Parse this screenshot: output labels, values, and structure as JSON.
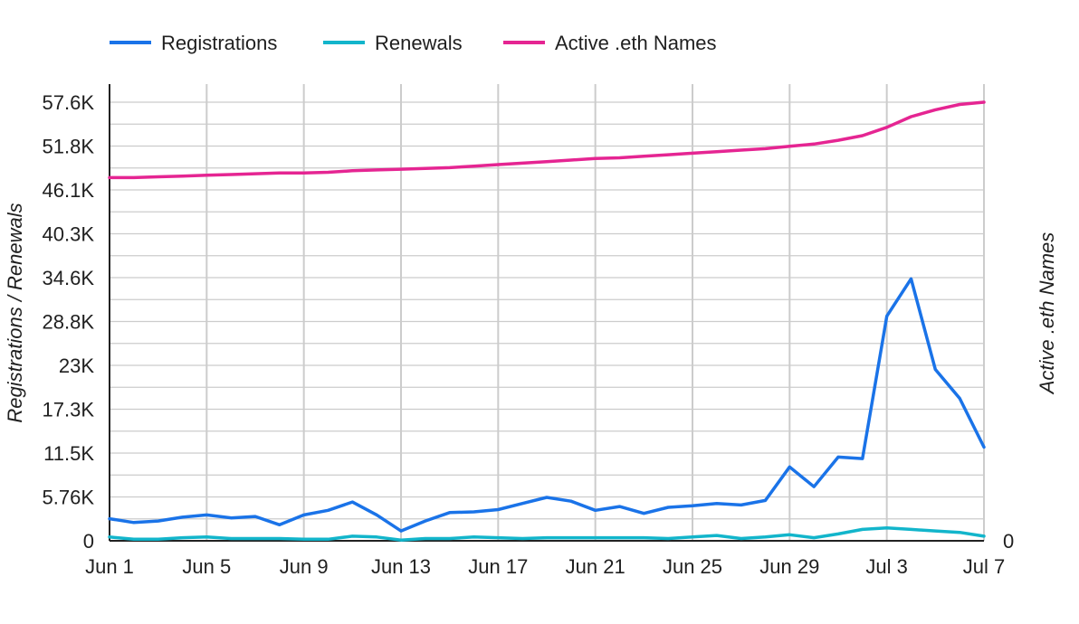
{
  "chart_data": {
    "type": "line",
    "title": "",
    "xlabel": "",
    "ylabel": "Registrations / Renewals",
    "y2label": "Active .eth Names",
    "x_tick_labels": [
      "Jun 1",
      "Jun 5",
      "Jun 9",
      "Jun 13",
      "Jun 17",
      "Jun 21",
      "Jun 25",
      "Jun 29",
      "Jul 3",
      "Jul 7"
    ],
    "x": [
      "Jun 1",
      "Jun 2",
      "Jun 3",
      "Jun 4",
      "Jun 5",
      "Jun 6",
      "Jun 7",
      "Jun 8",
      "Jun 9",
      "Jun 10",
      "Jun 11",
      "Jun 12",
      "Jun 13",
      "Jun 14",
      "Jun 15",
      "Jun 16",
      "Jun 17",
      "Jun 18",
      "Jun 19",
      "Jun 20",
      "Jun 21",
      "Jun 22",
      "Jun 23",
      "Jun 24",
      "Jun 25",
      "Jun 26",
      "Jun 27",
      "Jun 28",
      "Jun 29",
      "Jun 30",
      "Jul 1",
      "Jul 2",
      "Jul 3",
      "Jul 4",
      "Jul 5",
      "Jul 6",
      "Jul 7"
    ],
    "y_tick_labels": [
      "0",
      "5.76K",
      "11.5K",
      "17.3K",
      "23K",
      "28.8K",
      "34.6K",
      "40.3K",
      "46.1K",
      "51.8K",
      "57.6K"
    ],
    "y2_tick_labels": [
      "0"
    ],
    "ylim": [
      0,
      57600
    ],
    "grid": true,
    "legend_position": "top-left",
    "series": [
      {
        "name": "Registrations",
        "color": "#1a73e8",
        "axis": "left",
        "values": [
          2900,
          2400,
          2600,
          3100,
          3400,
          3000,
          3200,
          2100,
          3400,
          4000,
          5100,
          3400,
          1300,
          2600,
          3700,
          3800,
          4100,
          4900,
          5700,
          5200,
          4000,
          4500,
          3600,
          4400,
          4600,
          4900,
          4700,
          5300,
          9700,
          7100,
          11000,
          10800,
          29500,
          34400,
          22500,
          18700,
          12300
        ]
      },
      {
        "name": "Renewals",
        "color": "#12b5cb",
        "axis": "left",
        "values": [
          500,
          200,
          200,
          400,
          500,
          300,
          300,
          300,
          200,
          200,
          600,
          500,
          100,
          300,
          300,
          500,
          400,
          300,
          400,
          400,
          400,
          400,
          400,
          300,
          500,
          700,
          300,
          500,
          800,
          400,
          900,
          1500,
          1700,
          1500,
          1300,
          1100,
          600
        ]
      },
      {
        "name": "Active .eth Names",
        "color": "#e52592",
        "axis": "left",
        "values": [
          47700,
          47700,
          47800,
          47900,
          48000,
          48100,
          48200,
          48300,
          48300,
          48400,
          48600,
          48700,
          48800,
          48900,
          49000,
          49200,
          49400,
          49600,
          49800,
          50000,
          50200,
          50300,
          50500,
          50700,
          50900,
          51100,
          51300,
          51500,
          51800,
          52100,
          52600,
          53200,
          54300,
          55700,
          56600,
          57300,
          57600
        ]
      }
    ]
  }
}
